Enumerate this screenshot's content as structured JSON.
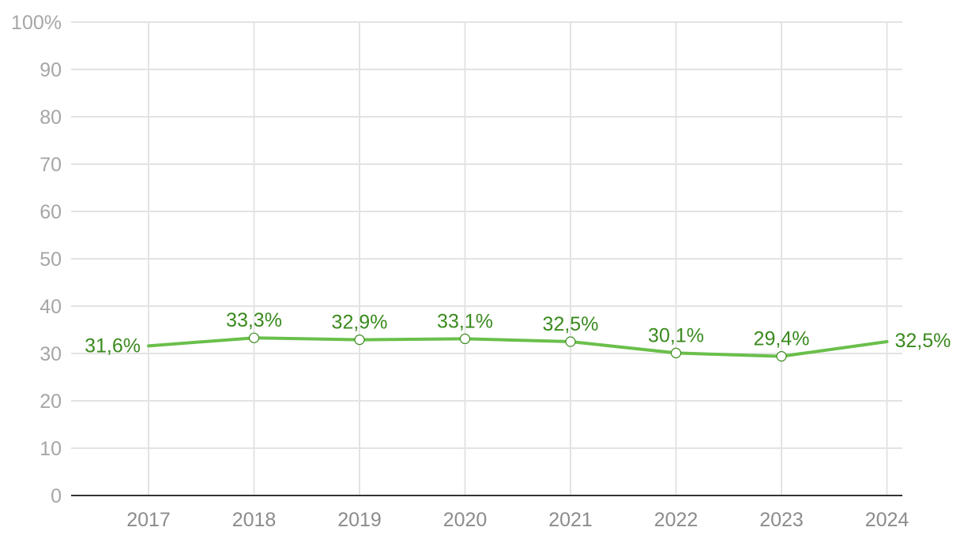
{
  "chart_data": {
    "type": "line",
    "x": [
      "2017",
      "2018",
      "2019",
      "2020",
      "2021",
      "2022",
      "2023",
      "2024"
    ],
    "series": [
      {
        "values": [
          31.6,
          33.3,
          32.9,
          33.1,
          32.5,
          30.1,
          29.4,
          32.5
        ],
        "labels": [
          "31,6%",
          "33,3%",
          "32,9%",
          "33,1%",
          "32,5%",
          "30,1%",
          "29,4%",
          "32,5%"
        ]
      }
    ],
    "ylim": [
      0,
      100
    ],
    "yticks": [
      0,
      10,
      20,
      30,
      40,
      50,
      60,
      70,
      80,
      90,
      100
    ],
    "ytick_labels": [
      "0",
      "10",
      "20",
      "30",
      "40",
      "50",
      "60",
      "70",
      "80",
      "90",
      "100%"
    ],
    "grid": true,
    "legend": "none",
    "colors": {
      "line": "#6abf4b",
      "label": "#3a8a1e",
      "grid": "#e3e3e3",
      "axis": "#333333"
    }
  }
}
